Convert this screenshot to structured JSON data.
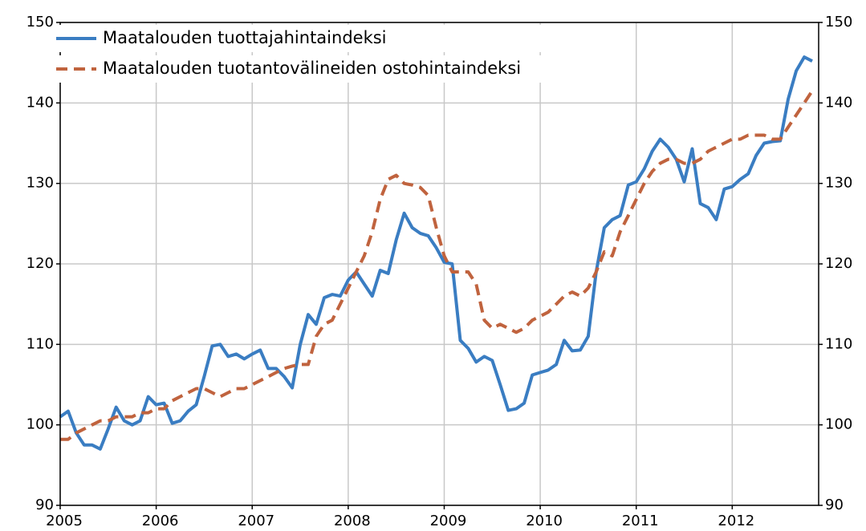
{
  "chart_data": {
    "type": "line",
    "x": [
      2005,
      2005.083,
      2005.167,
      2005.25,
      2005.333,
      2005.417,
      2005.5,
      2005.583,
      2005.667,
      2005.75,
      2005.833,
      2005.917,
      2006,
      2006.083,
      2006.167,
      2006.25,
      2006.333,
      2006.417,
      2006.5,
      2006.583,
      2006.667,
      2006.75,
      2006.833,
      2006.917,
      2007,
      2007.083,
      2007.167,
      2007.25,
      2007.333,
      2007.417,
      2007.5,
      2007.583,
      2007.667,
      2007.75,
      2007.833,
      2007.917,
      2008,
      2008.083,
      2008.167,
      2008.25,
      2008.333,
      2008.417,
      2008.5,
      2008.583,
      2008.667,
      2008.75,
      2008.833,
      2008.917,
      2009,
      2009.083,
      2009.167,
      2009.25,
      2009.333,
      2009.417,
      2009.5,
      2009.583,
      2009.667,
      2009.75,
      2009.833,
      2009.917,
      2010,
      2010.083,
      2010.167,
      2010.25,
      2010.333,
      2010.417,
      2010.5,
      2010.583,
      2010.667,
      2010.75,
      2010.833,
      2010.917,
      2011,
      2011.083,
      2011.167,
      2011.25,
      2011.333,
      2011.417,
      2011.5,
      2011.583,
      2011.667,
      2011.75,
      2011.833,
      2011.917,
      2012,
      2012.083,
      2012.167,
      2012.25,
      2012.333,
      2012.417,
      2012.5,
      2012.583,
      2012.667,
      2012.75,
      2012.833
    ],
    "series": [
      {
        "name": "Maatalouden tuottajahintaindeksi",
        "color": "#3a7dc2",
        "dashed": false,
        "values": [
          101,
          101.7,
          99,
          97.5,
          97.5,
          97,
          99.5,
          102.2,
          100.5,
          100,
          100.5,
          103.5,
          102.5,
          102.7,
          100.2,
          100.5,
          101.7,
          102.5,
          106,
          109.8,
          110,
          108.5,
          108.8,
          108.2,
          108.8,
          109.3,
          107,
          107,
          106,
          104.6,
          110,
          113.7,
          112.5,
          115.8,
          116.2,
          116,
          118,
          119,
          117.5,
          116,
          119.2,
          118.8,
          123,
          126.3,
          124.5,
          123.8,
          123.5,
          122,
          120.2,
          120,
          110.5,
          109.5,
          107.8,
          108.5,
          108,
          105,
          101.8,
          102,
          102.7,
          106.2,
          106.5,
          106.8,
          107.5,
          110.5,
          109.2,
          109.3,
          111,
          119,
          124.5,
          125.5,
          126,
          129.8,
          130.2,
          131.8,
          134,
          135.5,
          134.5,
          133,
          130.2,
          134.3,
          127.5,
          127,
          125.5,
          129.3,
          129.6,
          130.5,
          131.2,
          133.5,
          135,
          135.2,
          135.3,
          140.5,
          144,
          145.7,
          145.2
        ]
      },
      {
        "name": "Maatalouden tuotantovälineiden ostohintaindeksi",
        "color": "#c0633e",
        "dashed": true,
        "values": [
          98.2,
          98.2,
          99,
          99.5,
          100,
          100.5,
          100.5,
          101,
          101,
          101,
          101.5,
          101.5,
          102,
          102,
          103,
          103.5,
          104,
          104.5,
          104.5,
          104,
          103.5,
          104,
          104.5,
          104.5,
          105,
          105.5,
          106,
          106.5,
          107,
          107.3,
          107.5,
          107.5,
          111,
          112.5,
          113,
          115,
          117,
          119,
          121,
          124,
          128,
          130.5,
          131,
          130,
          129.8,
          129.5,
          128.5,
          124.5,
          121,
          119,
          119,
          119,
          117.5,
          113,
          112,
          112.5,
          112,
          111.5,
          112,
          113,
          113.5,
          114,
          115,
          116,
          116.5,
          116,
          117,
          119,
          121.5,
          121,
          124,
          126,
          128,
          130,
          131.5,
          132.5,
          133,
          133,
          132.5,
          132.5,
          133,
          134,
          134.5,
          135,
          135.5,
          135.5,
          136,
          136,
          136,
          135.5,
          135.5,
          137,
          138.5,
          140,
          141.5
        ]
      }
    ],
    "xlim": [
      2005,
      2012.9
    ],
    "xticks": [
      2005,
      2006,
      2007,
      2008,
      2009,
      2010,
      2011,
      2012
    ],
    "ylim": [
      90,
      150
    ],
    "yticks": [
      90,
      100,
      110,
      120,
      130,
      140,
      150
    ],
    "y2lim": [
      90,
      150
    ],
    "y2ticks": [
      90,
      100,
      110,
      120,
      130,
      140,
      150
    ],
    "grid": true,
    "legend": "top-left"
  }
}
